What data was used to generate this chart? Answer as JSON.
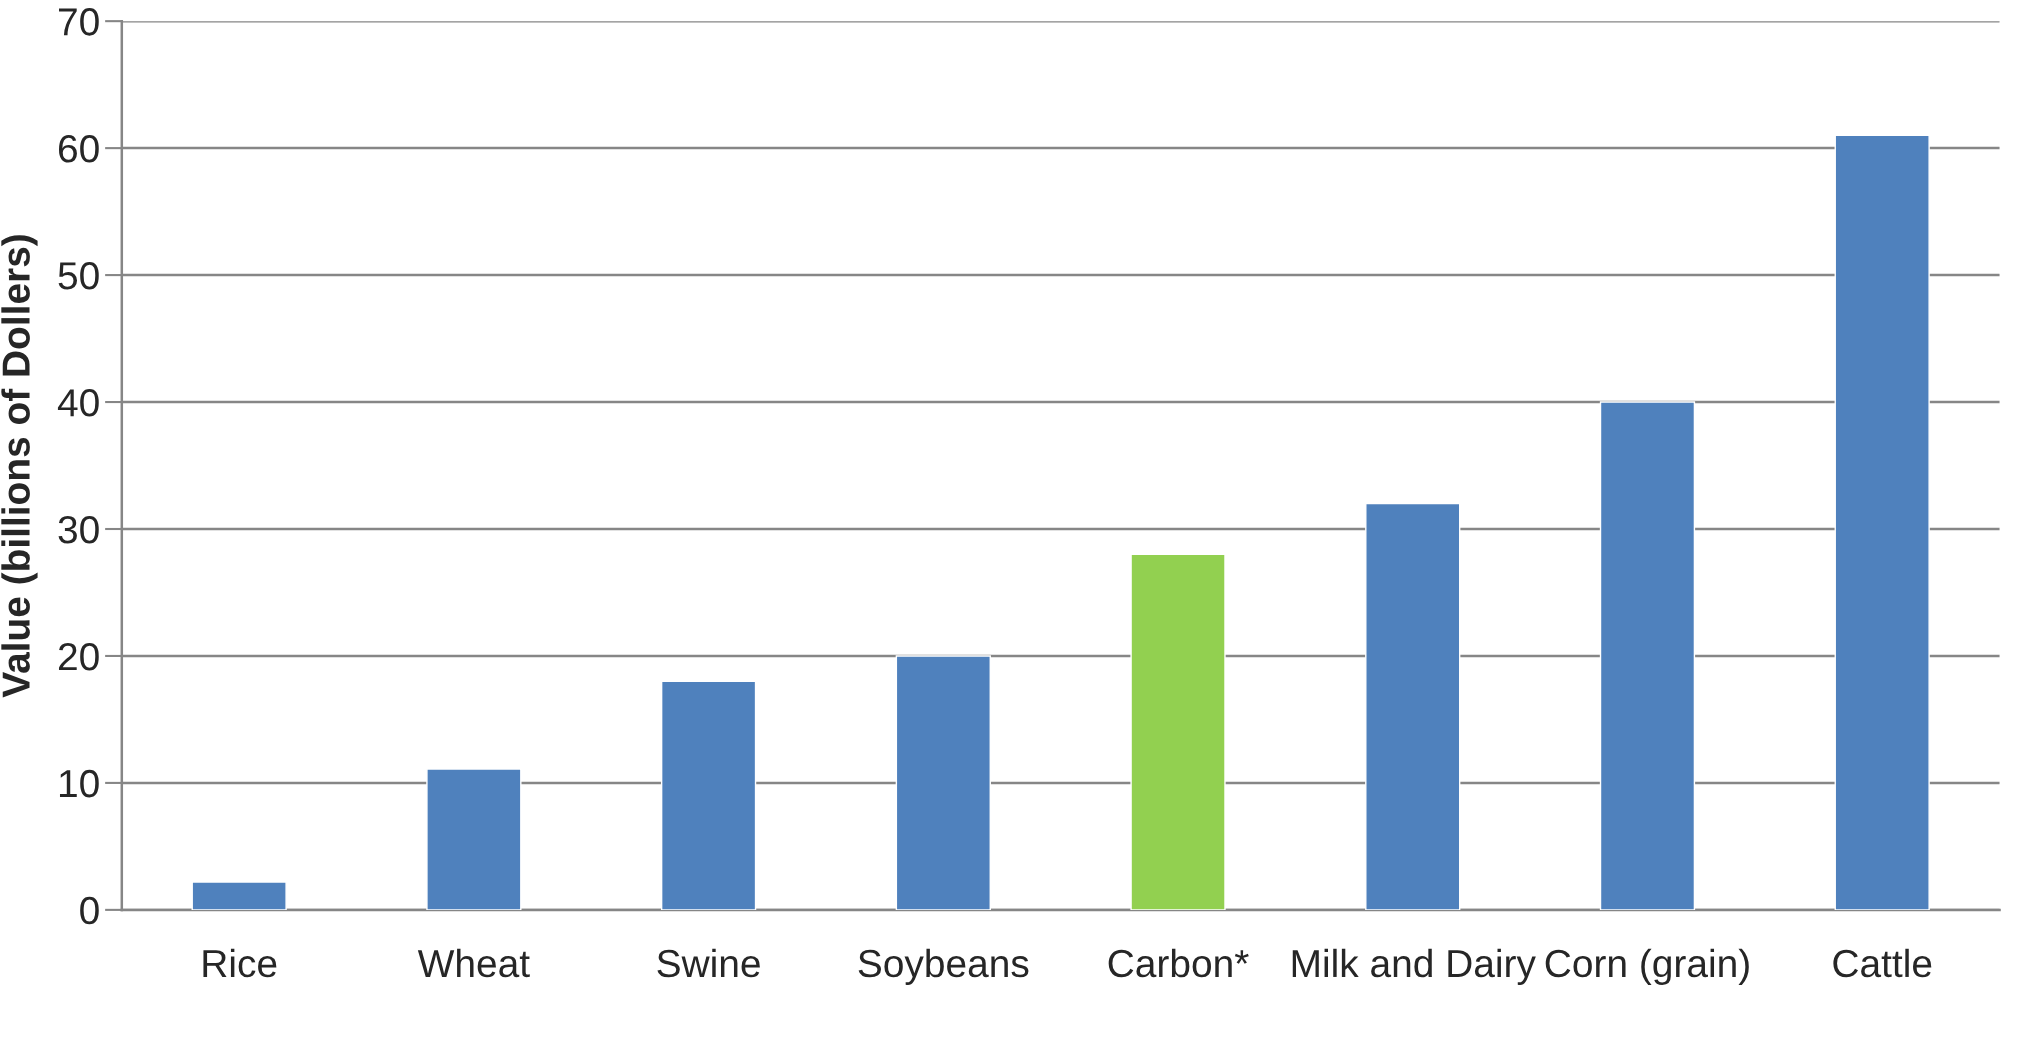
{
  "chart_data": {
    "type": "bar",
    "ylabel": "Value (billions of Dollers)",
    "categories": [
      "Rice",
      "Wheat",
      "Swine",
      "Soybeans",
      "Carbon*",
      "Milk and Dairy",
      "Corn (grain)",
      "Cattle"
    ],
    "values": [
      2.2,
      11.1,
      18,
      20,
      28,
      32,
      40,
      61
    ],
    "colors": [
      "#4f81bd",
      "#4f81bd",
      "#4f81bd",
      "#4f81bd",
      "#92d050",
      "#4f81bd",
      "#4f81bd",
      "#4f81bd"
    ],
    "ylim": [
      0,
      70
    ],
    "yticks": [
      0,
      10,
      20,
      30,
      40,
      50,
      60,
      70
    ],
    "grid": "y"
  }
}
